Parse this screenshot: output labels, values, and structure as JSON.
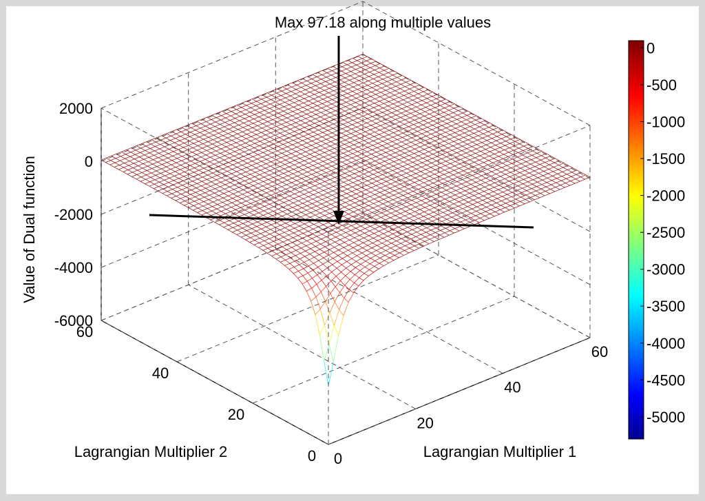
{
  "chart_data": {
    "type": "surface",
    "annotation": "Max 97.18 along multiple values",
    "xlabel": "Lagrangian Multiplier 1",
    "ylabel": "Lagrangian Multiplier 2",
    "zlabel": "Value of Dual function",
    "xlim": [
      0,
      60
    ],
    "ylim": [
      0,
      60
    ],
    "zlim": [
      -6000,
      2000
    ],
    "xticks": [
      "0",
      "20",
      "40",
      "60"
    ],
    "yticks": [
      "0",
      "20",
      "40",
      "60"
    ],
    "zticks": [
      "2000",
      "0",
      "-2000",
      "-4000",
      "-6000"
    ],
    "max_value": 97.18,
    "min_value": -5300,
    "colorbar": {
      "range": [
        -5300,
        97.18
      ],
      "ticks": [
        "0",
        "-500",
        "-1000",
        "-1500",
        "-2000",
        "-2500",
        "-3000",
        "-3500",
        "-4000",
        "-4500",
        "-5000"
      ],
      "colormap": "jet"
    },
    "grid": true,
    "colors": {
      "surface_top": "#c23b3b",
      "figure_bg": "#d9d9d9",
      "axes_bg": "#ffffff"
    }
  }
}
